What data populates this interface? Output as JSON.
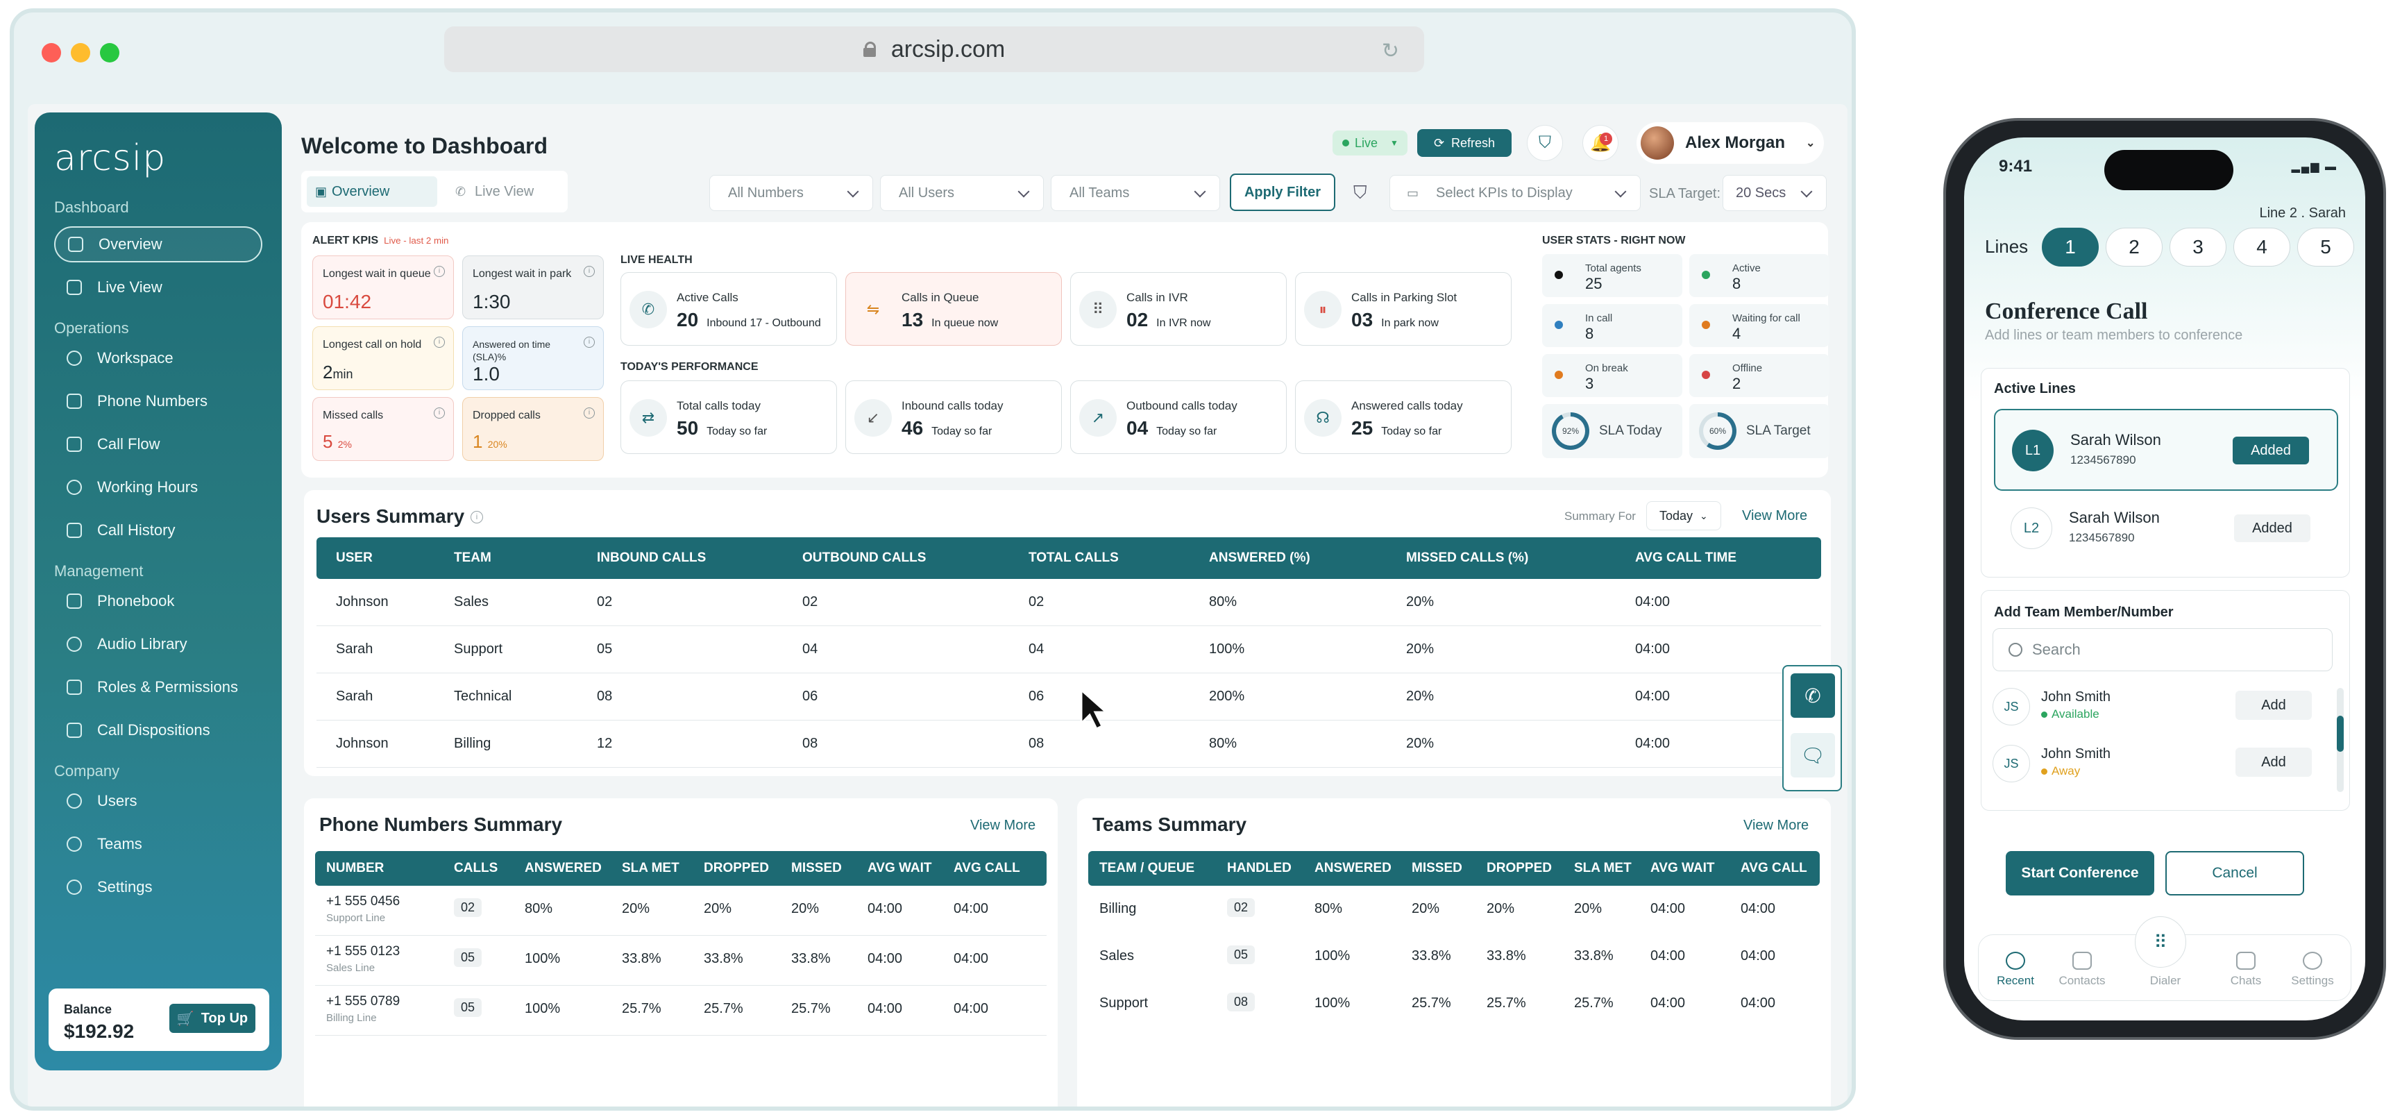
{
  "browser": {
    "url": "arcsip.com"
  },
  "sidebar": {
    "logo": "arcsip",
    "sections": [
      {
        "title": "Dashboard",
        "items": [
          "Overview",
          "Live View"
        ]
      },
      {
        "title": "Operations",
        "items": [
          "Workspace",
          "Phone Numbers",
          "Call Flow",
          "Working Hours",
          "Call History"
        ]
      },
      {
        "title": "Management",
        "items": [
          "Phonebook",
          "Audio Library",
          "Roles & Permissions",
          "Call Dispositions"
        ]
      },
      {
        "title": "Company",
        "items": [
          "Users",
          "Teams",
          "Settings"
        ]
      }
    ],
    "balance_label": "Balance",
    "balance_value": "$192.92",
    "topup_label": "Top Up"
  },
  "header": {
    "title": "Welcome to Dashboard",
    "live_label": "Live",
    "refresh_label": "Refresh",
    "notification_count": "1",
    "user_name": "Alex Morgan"
  },
  "filters": {
    "tab_overview": "Overview",
    "tab_live": "Live View",
    "numbers": "All Numbers",
    "users": "All Users",
    "teams": "All Teams",
    "apply": "Apply Filter",
    "kpis": "Select KPIs to Display",
    "sla_label": "SLA Target:",
    "sla_value": "20 Secs"
  },
  "alerts": {
    "title": "ALERT KPIS",
    "note": "Live - last 2 min",
    "items": [
      {
        "label": "Longest wait in queue",
        "value": "01:42"
      },
      {
        "label": "Longest wait in park",
        "value": "1:30"
      },
      {
        "label": "Longest call on hold",
        "value": "2",
        "unit": "min"
      },
      {
        "label": "Answered on time (SLA)%",
        "value": "1.0"
      },
      {
        "label": "Missed calls",
        "value": "5",
        "unit": "2%"
      },
      {
        "label": "Dropped calls",
        "value": "1",
        "unit": "20%"
      }
    ]
  },
  "live_health": {
    "title": "LIVE HEALTH",
    "cards": [
      {
        "label": "Active Calls",
        "value": "20",
        "sub": "Inbound 17 - Outbound"
      },
      {
        "label": "Calls in Queue",
        "value": "13",
        "sub": "In queue now"
      },
      {
        "label": "Calls in IVR",
        "value": "02",
        "sub": "In IVR now"
      },
      {
        "label": "Calls in Parking Slot",
        "value": "03",
        "sub": "In park now"
      }
    ]
  },
  "performance": {
    "title": "TODAY'S PERFORMANCE",
    "cards": [
      {
        "label": "Total calls today",
        "value": "50",
        "sub": "Today so far"
      },
      {
        "label": "Inbound calls today",
        "value": "46",
        "sub": "Today so far"
      },
      {
        "label": "Outbound calls today",
        "value": "04",
        "sub": "Today so far"
      },
      {
        "label": "Answered calls today",
        "value": "25",
        "sub": "Today so far"
      }
    ]
  },
  "user_stats": {
    "title": "USER STATS - RIGHT NOW",
    "items": [
      {
        "label": "Total agents",
        "value": "25",
        "color": "#111111"
      },
      {
        "label": "Active",
        "value": "8",
        "color": "#2ba55f"
      },
      {
        "label": "In call",
        "value": "8",
        "color": "#2f7fbf"
      },
      {
        "label": "Waiting for call",
        "value": "4",
        "color": "#e07b1f"
      },
      {
        "label": "On break",
        "value": "3",
        "color": "#e07b1f"
      },
      {
        "label": "Offline",
        "value": "2",
        "color": "#d64545"
      }
    ],
    "sla_today_pct": "92%",
    "sla_today_label": "SLA Today",
    "sla_target_pct": "60%",
    "sla_target_label": "SLA Target"
  },
  "users_summary": {
    "title": "Users Summary",
    "summary_for_label": "Summary For",
    "summary_for_value": "Today",
    "view_more": "View More",
    "columns": [
      "USER",
      "TEAM",
      "INBOUND CALLS",
      "OUTBOUND CALLS",
      "TOTAL CALLS",
      "ANSWERED (%)",
      "MISSED CALLS (%)",
      "AVG CALL TIME"
    ],
    "rows": [
      [
        "Johnson",
        "Sales",
        "02",
        "02",
        "02",
        "80%",
        "20%",
        "04:00"
      ],
      [
        "Sarah",
        "Support",
        "05",
        "04",
        "04",
        "100%",
        "20%",
        "04:00"
      ],
      [
        "Sarah",
        "Technical",
        "08",
        "06",
        "06",
        "200%",
        "20%",
        "04:00"
      ],
      [
        "Johnson",
        "Billing",
        "12",
        "08",
        "08",
        "80%",
        "20%",
        "04:00"
      ]
    ]
  },
  "phone_summary": {
    "title": "Phone Numbers Summary",
    "view_more": "View More",
    "columns": [
      "NUMBER",
      "CALLS",
      "ANSWERED",
      "SLA MET",
      "DROPPED",
      "MISSED",
      "AVG WAIT",
      "AVG CALL"
    ],
    "rows": [
      {
        "number": "+1 555 0456",
        "line": "Support Line",
        "calls": "02",
        "answered": "80%",
        "sla": "20%",
        "dropped": "20%",
        "missed": "20%",
        "wait": "04:00",
        "call": "04:00"
      },
      {
        "number": "+1 555 0123",
        "line": "Sales Line",
        "calls": "05",
        "answered": "100%",
        "sla": "33.8%",
        "dropped": "33.8%",
        "missed": "33.8%",
        "wait": "04:00",
        "call": "04:00"
      },
      {
        "number": "+1 555 0789",
        "line": "Billing Line",
        "calls": "05",
        "answered": "100%",
        "sla": "25.7%",
        "dropped": "25.7%",
        "missed": "25.7%",
        "wait": "04:00",
        "call": "04:00"
      }
    ]
  },
  "teams_summary": {
    "title": "Teams Summary",
    "view_more": "View More",
    "columns": [
      "TEAM / QUEUE",
      "HANDLED",
      "ANSWERED",
      "MISSED",
      "DROPPED",
      "SLA MET",
      "AVG WAIT",
      "AVG CALL"
    ],
    "rows": [
      [
        "Billing",
        "02",
        "80%",
        "20%",
        "20%",
        "20%",
        "04:00",
        "04:00"
      ],
      [
        "Sales",
        "05",
        "100%",
        "33.8%",
        "33.8%",
        "33.8%",
        "04:00",
        "04:00"
      ],
      [
        "Support",
        "08",
        "100%",
        "25.7%",
        "25.7%",
        "25.7%",
        "04:00",
        "04:00"
      ]
    ]
  },
  "phone": {
    "time": "9:41",
    "line_info": "Line 2 . Sarah",
    "lines_label": "Lines",
    "lines": [
      "1",
      "2",
      "3",
      "4",
      "5"
    ],
    "title": "Conference Call",
    "subtitle": "Add lines or team members to conference",
    "active_lines_title": "Active Lines",
    "active_lines": [
      {
        "badge": "L1",
        "name": "Sarah Wilson",
        "number": "1234567890",
        "status": "Added"
      },
      {
        "badge": "L2",
        "name": "Sarah Wilson",
        "number": "1234567890",
        "status": "Added"
      }
    ],
    "add_title": "Add Team Member/Number",
    "search_placeholder": "Search",
    "members": [
      {
        "initials": "JS",
        "name": "John Smith",
        "status": "Available",
        "color": "#2ba55f",
        "action": "Add"
      },
      {
        "initials": "JS",
        "name": "John Smith",
        "status": "Away",
        "color": "#e0a11f",
        "action": "Add"
      }
    ],
    "start_label": "Start Conference",
    "cancel_label": "Cancel",
    "nav": [
      "Recent",
      "Contacts",
      "Dialer",
      "Chats",
      "Settings"
    ]
  }
}
